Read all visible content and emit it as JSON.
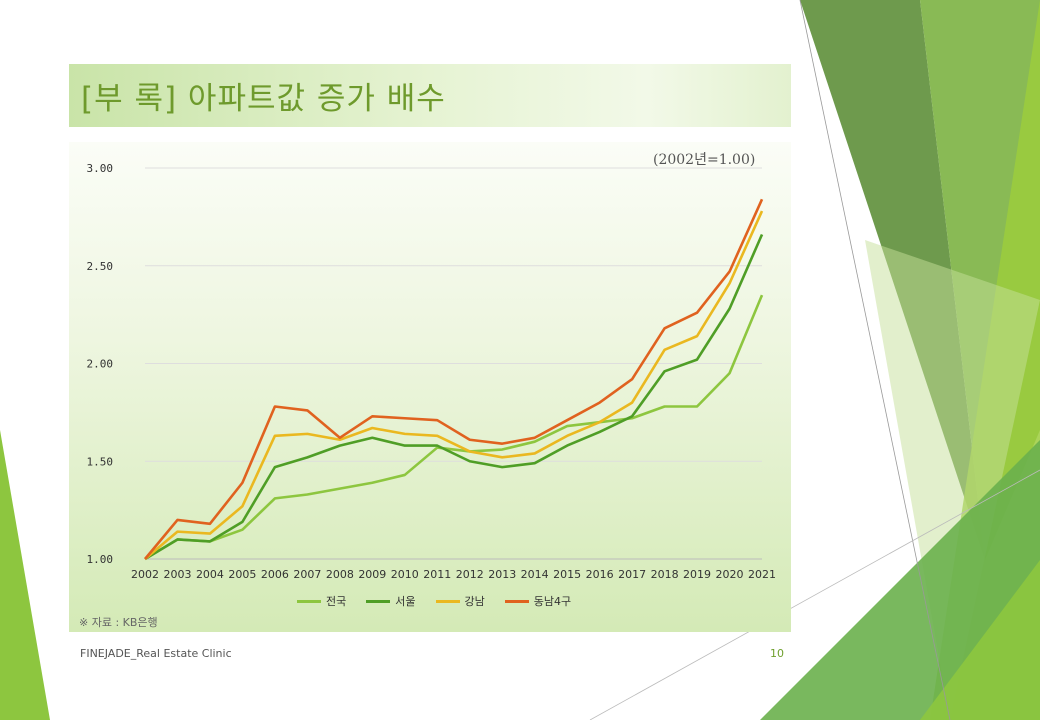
{
  "slide": {
    "title": "[부 록] 아파트값 증가 배수",
    "base_note": "(2002년=1.00)",
    "source": "※ 자료 : KB은행",
    "footer_left": "FINEJADE_Real Estate Clinic",
    "page_number": "10"
  },
  "colors": {
    "accent_green": "#8dc63f",
    "title_text": "#6e9a2c"
  },
  "chart_data": {
    "type": "line",
    "categories": [
      "2002",
      "2003",
      "2004",
      "2005",
      "2006",
      "2007",
      "2008",
      "2009",
      "2010",
      "2011",
      "2012",
      "2013",
      "2014",
      "2015",
      "2016",
      "2017",
      "2018",
      "2019",
      "2020",
      "2021"
    ],
    "ylim": [
      1.0,
      3.0
    ],
    "yticks": [
      "1.00",
      "1.50",
      "2.00",
      "2.50",
      "3.00"
    ],
    "grid": true,
    "legend_position": "bottom",
    "series": [
      {
        "name": "전국",
        "color": "#8dc63f",
        "values": [
          1.0,
          1.1,
          1.09,
          1.15,
          1.31,
          1.33,
          1.36,
          1.39,
          1.43,
          1.57,
          1.55,
          1.56,
          1.6,
          1.68,
          1.7,
          1.72,
          1.78,
          1.78,
          1.95,
          2.35
        ]
      },
      {
        "name": "서울",
        "color": "#4f9e26",
        "values": [
          1.0,
          1.1,
          1.09,
          1.19,
          1.47,
          1.52,
          1.58,
          1.62,
          1.58,
          1.58,
          1.5,
          1.47,
          1.49,
          1.58,
          1.65,
          1.73,
          1.96,
          2.02,
          2.28,
          2.66
        ]
      },
      {
        "name": "강남",
        "color": "#eab820",
        "values": [
          1.0,
          1.14,
          1.13,
          1.27,
          1.63,
          1.64,
          1.61,
          1.67,
          1.64,
          1.63,
          1.55,
          1.52,
          1.54,
          1.63,
          1.7,
          1.8,
          2.07,
          2.14,
          2.41,
          2.78
        ]
      },
      {
        "name": "동남4구",
        "color": "#e0621f",
        "values": [
          1.0,
          1.2,
          1.18,
          1.39,
          1.78,
          1.76,
          1.62,
          1.73,
          1.72,
          1.71,
          1.61,
          1.59,
          1.62,
          1.71,
          1.8,
          1.92,
          2.18,
          2.26,
          2.47,
          2.84
        ]
      }
    ]
  }
}
